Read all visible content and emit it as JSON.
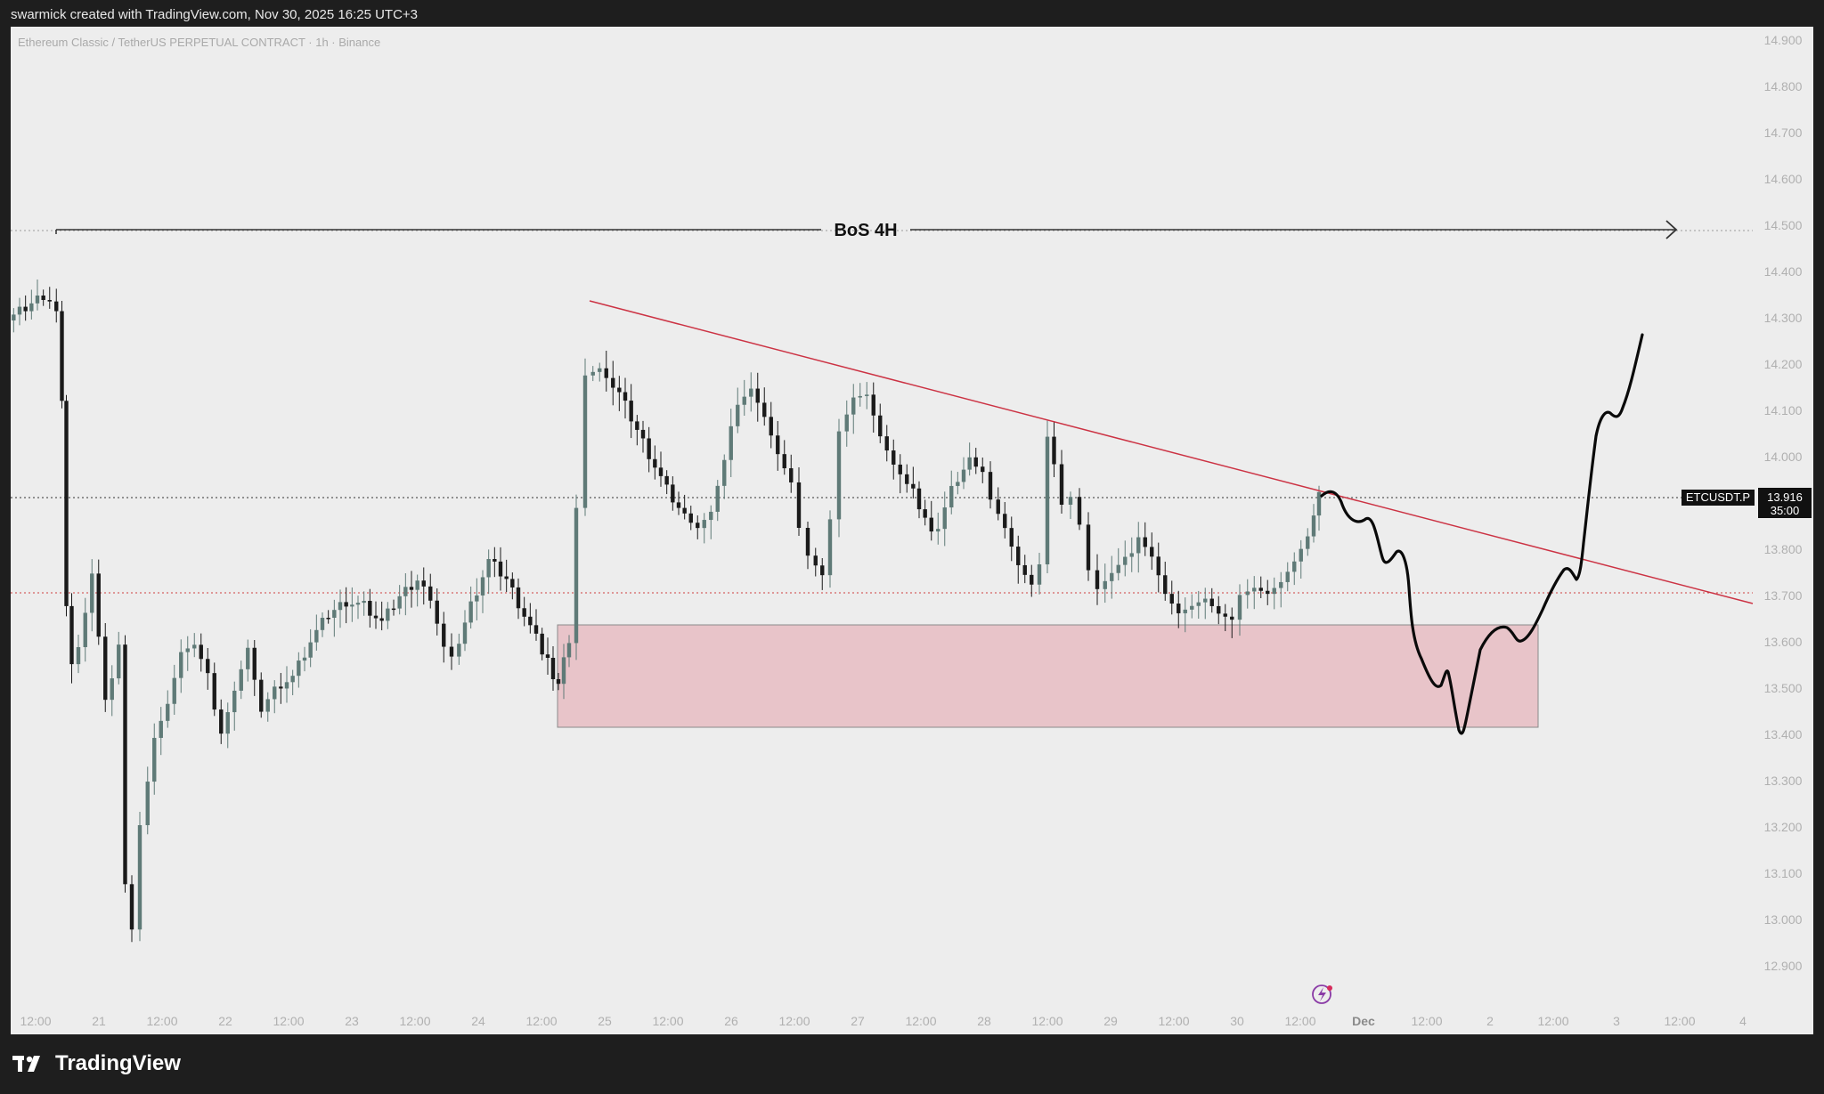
{
  "header": {
    "title": "swarmick created with TradingView.com, Nov 30, 2025 16:25 UTC+3"
  },
  "chart": {
    "symbol_title": "Ethereum Classic / TetherUS PERPETUAL CONTRACT · 1h · Binance",
    "ticker_label": "ETCUSDT.P",
    "last_price": "13.916",
    "countdown": "35:00",
    "annotation": "BoS 4H",
    "price_axis": [
      "14.900",
      "14.800",
      "14.700",
      "14.600",
      "14.500",
      "14.400",
      "14.300",
      "14.200",
      "14.100",
      "14.000",
      "13.900",
      "13.800",
      "13.700",
      "13.600",
      "13.500",
      "13.400",
      "13.300",
      "13.200",
      "13.100",
      "13.000",
      "12.900"
    ],
    "time_axis": [
      "12:00",
      "21",
      "12:00",
      "22",
      "12:00",
      "23",
      "12:00",
      "24",
      "12:00",
      "25",
      "12:00",
      "26",
      "12:00",
      "27",
      "12:00",
      "28",
      "12:00",
      "29",
      "12:00",
      "30",
      "12:00",
      "Dec",
      "12:00",
      "2",
      "12:00",
      "3",
      "12:00",
      "4"
    ],
    "colors": {
      "background": "#ededed",
      "candle_up": "#5f7a77",
      "candle_down": "#1a1a1a",
      "trendline": "#cc3344",
      "zone_fill": "#e8c4c9",
      "zone_border": "#888888"
    }
  },
  "footer": {
    "brand": "TradingView",
    "brand_icon": "tradingview-logo-icon"
  }
}
